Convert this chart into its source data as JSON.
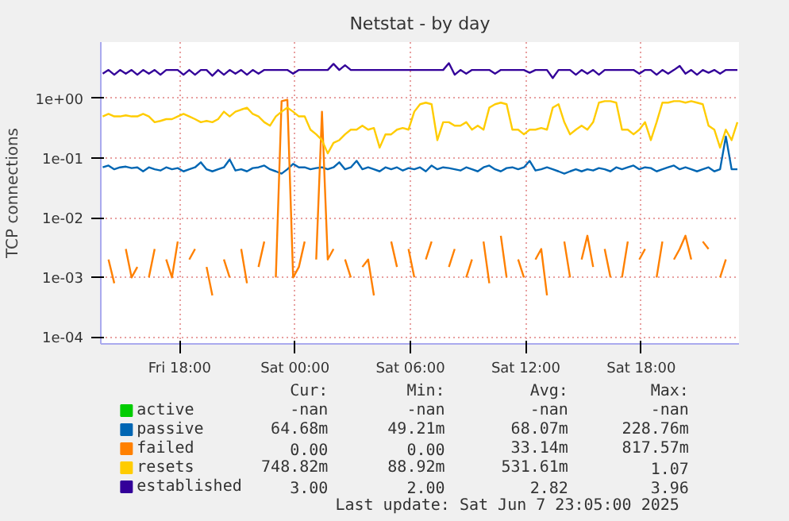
{
  "chart_data": {
    "type": "line",
    "title": "Netstat - by day",
    "ylabel": "TCP connections",
    "log": "y",
    "grid": true,
    "legend": "bottom",
    "xlim": [
      "2025-06-06T13:54",
      "2025-06-07T23:05"
    ],
    "ylim": [
      7.7e-05,
      8.8
    ],
    "xticks": [
      {
        "value": "2025-06-06T18:00",
        "label": "Fri 18:00"
      },
      {
        "value": "2025-06-07T00:00",
        "label": "Sat 00:00"
      },
      {
        "value": "2025-06-07T06:00",
        "label": "Sat 06:00"
      },
      {
        "value": "2025-06-07T12:00",
        "label": "Sat 12:00"
      },
      {
        "value": "2025-06-07T18:00",
        "label": "Sat 18:00"
      }
    ],
    "yticks": [
      {
        "value": 0.0001,
        "label": "1e-04"
      },
      {
        "value": 0.001,
        "label": "1e-03"
      },
      {
        "value": 0.01,
        "label": "1e-02"
      },
      {
        "value": 0.1,
        "label": "1e-01"
      },
      {
        "value": 1,
        "label": "1e+00"
      }
    ],
    "x": [
      "2025-06-06T14:00",
      "2025-06-06T14:18",
      "2025-06-06T14:36",
      "2025-06-06T14:54",
      "2025-06-06T15:12",
      "2025-06-06T15:30",
      "2025-06-06T15:48",
      "2025-06-06T16:06",
      "2025-06-06T16:24",
      "2025-06-06T16:42",
      "2025-06-06T17:00",
      "2025-06-06T17:18",
      "2025-06-06T17:36",
      "2025-06-06T17:54",
      "2025-06-06T18:12",
      "2025-06-06T18:30",
      "2025-06-06T18:48",
      "2025-06-06T19:06",
      "2025-06-06T19:24",
      "2025-06-06T19:42",
      "2025-06-06T20:00",
      "2025-06-06T20:18",
      "2025-06-06T20:36",
      "2025-06-06T20:54",
      "2025-06-06T21:12",
      "2025-06-06T21:30",
      "2025-06-06T21:48",
      "2025-06-06T22:06",
      "2025-06-06T22:24",
      "2025-06-06T22:42",
      "2025-06-06T23:00",
      "2025-06-06T23:18",
      "2025-06-06T23:36",
      "2025-06-06T23:54",
      "2025-06-07T00:12",
      "2025-06-07T00:30",
      "2025-06-07T00:48",
      "2025-06-07T01:06",
      "2025-06-07T01:24",
      "2025-06-07T01:42",
      "2025-06-07T02:00",
      "2025-06-07T02:18",
      "2025-06-07T02:36",
      "2025-06-07T02:54",
      "2025-06-07T03:12",
      "2025-06-07T03:30",
      "2025-06-07T03:48",
      "2025-06-07T04:06",
      "2025-06-07T04:24",
      "2025-06-07T04:42",
      "2025-06-07T05:00",
      "2025-06-07T05:18",
      "2025-06-07T05:36",
      "2025-06-07T05:54",
      "2025-06-07T06:12",
      "2025-06-07T06:30",
      "2025-06-07T06:48",
      "2025-06-07T07:06",
      "2025-06-07T07:24",
      "2025-06-07T07:42",
      "2025-06-07T08:00",
      "2025-06-07T08:18",
      "2025-06-07T08:36",
      "2025-06-07T08:54",
      "2025-06-07T09:12",
      "2025-06-07T09:30",
      "2025-06-07T09:48",
      "2025-06-07T10:06",
      "2025-06-07T10:24",
      "2025-06-07T10:42",
      "2025-06-07T11:00",
      "2025-06-07T11:18",
      "2025-06-07T11:36",
      "2025-06-07T11:54",
      "2025-06-07T12:12",
      "2025-06-07T12:30",
      "2025-06-07T12:48",
      "2025-06-07T13:06",
      "2025-06-07T13:24",
      "2025-06-07T13:42",
      "2025-06-07T14:00",
      "2025-06-07T14:18",
      "2025-06-07T14:36",
      "2025-06-07T14:54",
      "2025-06-07T15:12",
      "2025-06-07T15:30",
      "2025-06-07T15:48",
      "2025-06-07T16:06",
      "2025-06-07T16:24",
      "2025-06-07T16:42",
      "2025-06-07T17:00",
      "2025-06-07T17:18",
      "2025-06-07T17:36",
      "2025-06-07T17:54",
      "2025-06-07T18:12",
      "2025-06-07T18:30",
      "2025-06-07T18:48",
      "2025-06-07T19:06",
      "2025-06-07T19:24",
      "2025-06-07T19:42",
      "2025-06-07T20:00",
      "2025-06-07T20:18",
      "2025-06-07T20:36",
      "2025-06-07T20:54",
      "2025-06-07T21:12",
      "2025-06-07T21:30",
      "2025-06-07T21:48",
      "2025-06-07T22:06",
      "2025-06-07T22:24",
      "2025-06-07T22:42",
      "2025-06-07T23:00"
    ],
    "series": [
      {
        "name": "active",
        "color": "#00cc00",
        "values": [
          null,
          null,
          null,
          null,
          null,
          null,
          null,
          null,
          null,
          null,
          null,
          null,
          null,
          null,
          null,
          null,
          null,
          null,
          null,
          null,
          null,
          null,
          null,
          null,
          null,
          null,
          null,
          null,
          null,
          null,
          null,
          null,
          null,
          null,
          null,
          null,
          null,
          null,
          null,
          null,
          null,
          null,
          null,
          null,
          null,
          null,
          null,
          null,
          null,
          null,
          null,
          null,
          null,
          null,
          null,
          null,
          null,
          null,
          null,
          null,
          null,
          null,
          null,
          null,
          null,
          null,
          null,
          null,
          null,
          null,
          null,
          null,
          null,
          null,
          null,
          null,
          null,
          null,
          null,
          null,
          null,
          null,
          null,
          null,
          null,
          null,
          null,
          null,
          null,
          null,
          null,
          null,
          null,
          null,
          null,
          null,
          null,
          null,
          null,
          null,
          null,
          null,
          null,
          null,
          null,
          null,
          null,
          null,
          null,
          null,
          null
        ]
      },
      {
        "name": "passive",
        "color": "#0066b3",
        "values": [
          0.07,
          0.075,
          0.065,
          0.07,
          0.072,
          0.068,
          0.07,
          0.06,
          0.07,
          0.065,
          0.062,
          0.07,
          0.065,
          0.068,
          0.06,
          0.065,
          0.07,
          0.085,
          0.065,
          0.06,
          0.065,
          0.07,
          0.095,
          0.062,
          0.065,
          0.06,
          0.068,
          0.07,
          0.075,
          0.065,
          0.06,
          0.055,
          0.065,
          0.08,
          0.07,
          0.07,
          0.065,
          0.068,
          0.07,
          0.065,
          0.07,
          0.085,
          0.065,
          0.07,
          0.09,
          0.065,
          0.07,
          0.065,
          0.06,
          0.07,
          0.065,
          0.07,
          0.062,
          0.068,
          0.065,
          0.07,
          0.06,
          0.075,
          0.065,
          0.07,
          0.068,
          0.065,
          0.062,
          0.07,
          0.065,
          0.06,
          0.07,
          0.075,
          0.065,
          0.06,
          0.068,
          0.07,
          0.065,
          0.07,
          0.09,
          0.062,
          0.065,
          0.07,
          0.065,
          0.06,
          0.055,
          0.06,
          0.065,
          0.06,
          0.065,
          0.062,
          0.068,
          0.065,
          0.06,
          0.07,
          0.065,
          0.07,
          0.075,
          0.065,
          0.07,
          0.068,
          0.06,
          0.065,
          0.07,
          0.075,
          0.065,
          0.07,
          0.065,
          0.06,
          0.065,
          0.07,
          0.06,
          0.065,
          0.23,
          0.065,
          0.065
        ]
      },
      {
        "name": "failed",
        "color": "#ff8000",
        "values": [
          null,
          0.002,
          0.0008,
          null,
          0.003,
          0.001,
          0.0015,
          null,
          0.001,
          0.003,
          null,
          0.002,
          0.001,
          0.004,
          null,
          0.002,
          0.003,
          null,
          0.0015,
          0.0005,
          null,
          0.002,
          0.001,
          null,
          0.003,
          0.0008,
          null,
          0.0015,
          0.004,
          null,
          0.001,
          0.9,
          0.95,
          0.001,
          0.0015,
          0.004,
          null,
          0.002,
          0.6,
          0.002,
          0.003,
          null,
          0.002,
          0.001,
          null,
          0.0015,
          0.002,
          0.0005,
          null,
          null,
          0.004,
          0.0015,
          null,
          0.003,
          0.001,
          null,
          0.002,
          0.004,
          null,
          null,
          0.0015,
          0.003,
          null,
          0.001,
          0.002,
          null,
          0.004,
          0.0008,
          null,
          0.005,
          0.001,
          null,
          0.002,
          0.001,
          null,
          0.002,
          0.003,
          0.0005,
          null,
          null,
          0.004,
          0.001,
          null,
          0.002,
          0.005,
          0.0015,
          null,
          0.003,
          0.001,
          null,
          0.001,
          0.004,
          null,
          0.002,
          0.003,
          null,
          0.001,
          0.004,
          null,
          0.002,
          0.003,
          0.005,
          0.002,
          null,
          0.004,
          0.003,
          null,
          0.001,
          0.002,
          null,
          null
        ]
      },
      {
        "name": "resets",
        "color": "#ffcc00",
        "values": [
          0.5,
          0.55,
          0.5,
          0.5,
          0.52,
          0.5,
          0.5,
          0.55,
          0.5,
          0.4,
          0.42,
          0.45,
          0.45,
          0.5,
          0.55,
          0.5,
          0.45,
          0.4,
          0.42,
          0.4,
          0.45,
          0.6,
          0.5,
          0.6,
          0.65,
          0.7,
          0.55,
          0.5,
          0.4,
          0.35,
          0.5,
          0.6,
          0.7,
          0.6,
          0.5,
          0.5,
          0.3,
          0.25,
          0.2,
          0.12,
          0.18,
          0.2,
          0.25,
          0.3,
          0.3,
          0.35,
          0.3,
          0.32,
          0.15,
          0.25,
          0.25,
          0.3,
          0.32,
          0.3,
          0.6,
          0.8,
          0.85,
          0.8,
          0.2,
          0.4,
          0.4,
          0.35,
          0.35,
          0.4,
          0.3,
          0.35,
          0.3,
          0.7,
          0.8,
          0.85,
          0.8,
          0.3,
          0.3,
          0.25,
          0.3,
          0.3,
          0.32,
          0.3,
          0.7,
          0.8,
          0.4,
          0.25,
          0.3,
          0.35,
          0.3,
          0.4,
          0.85,
          0.9,
          0.9,
          0.85,
          0.3,
          0.3,
          0.25,
          0.3,
          0.4,
          0.2,
          0.4,
          0.85,
          0.85,
          0.9,
          0.9,
          0.85,
          0.9,
          0.85,
          0.8,
          0.35,
          0.3,
          0.15,
          0.3,
          0.2,
          0.4
        ]
      },
      {
        "name": "established",
        "color": "#330099",
        "values": [
          2.6,
          3,
          2.5,
          3,
          2.6,
          3,
          2.5,
          3,
          2.6,
          3,
          2.5,
          3,
          3,
          3,
          2.5,
          3,
          2.5,
          3,
          3,
          2.4,
          3,
          2.5,
          3,
          2.6,
          3,
          2.5,
          3,
          2.6,
          3,
          3,
          3,
          3,
          3,
          2.6,
          3,
          3,
          3,
          3,
          3,
          3,
          3.8,
          3,
          3.6,
          3,
          3,
          3,
          3,
          3,
          3,
          3,
          3,
          3,
          3,
          3,
          3,
          3,
          3,
          3,
          3,
          3,
          3.9,
          2.5,
          3,
          2.6,
          3,
          3,
          3,
          3,
          2.6,
          3,
          3,
          3,
          3,
          3,
          2.7,
          3,
          3,
          3,
          2.2,
          3,
          3,
          3,
          2.5,
          3,
          2.6,
          3,
          2.5,
          3,
          3,
          3,
          3,
          3,
          3,
          2.6,
          3,
          3,
          2.5,
          3,
          2.6,
          3,
          3.5,
          2.6,
          3,
          2.5,
          3,
          2.7,
          3,
          2.6,
          3,
          3,
          3
        ]
      }
    ],
    "annotations": [
      "Cur:",
      "Min:",
      "Avg:",
      "Max:",
      "-nan",
      "-nan",
      "-nan",
      "-nan",
      "64.68m",
      "49.21m",
      "68.07m",
      "228.76m",
      "0.00",
      "0.00",
      "33.14m",
      "817.57m",
      "748.82m",
      "88.92m",
      "531.61m",
      "1.07",
      "3.00",
      "2.00",
      "2.82",
      "3.96",
      "Last update: Sat Jun  7 23:05:00 2025"
    ]
  }
}
